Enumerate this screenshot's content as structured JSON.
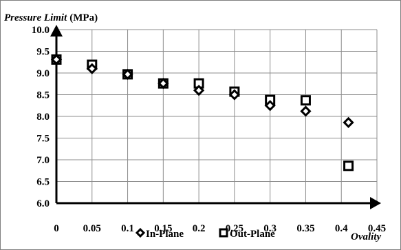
{
  "chart_data": {
    "type": "scatter",
    "title": "",
    "ylabel": {
      "italic": "Pressure Limit",
      "unit": "(MPa)"
    },
    "xlabel": "Ovality",
    "xlim": [
      0,
      0.45
    ],
    "ylim": [
      6.0,
      10.0
    ],
    "x_ticks": [
      "0",
      "0.05",
      "0.1",
      "0.15",
      "0.2",
      "0.25",
      "0.3",
      "0.35",
      "0.4",
      "0.45"
    ],
    "y_ticks": [
      "6.0",
      "6.5",
      "7.0",
      "7.5",
      "8.0",
      "8.5",
      "9.0",
      "9.5",
      "10.0"
    ],
    "grid": true,
    "legend_position": "bottom",
    "series": [
      {
        "name": "In-Plane",
        "marker": "diamond",
        "color": "#000000",
        "x": [
          0,
          0.05,
          0.1,
          0.15,
          0.2,
          0.25,
          0.3,
          0.35,
          0.41
        ],
        "y": [
          9.31,
          9.1,
          8.97,
          8.76,
          8.6,
          8.5,
          8.25,
          8.12,
          7.86
        ]
      },
      {
        "name": "Out-Plane",
        "marker": "square",
        "color": "#000000",
        "x": [
          0,
          0.05,
          0.1,
          0.15,
          0.2,
          0.25,
          0.3,
          0.35,
          0.41
        ],
        "y": [
          9.31,
          9.19,
          8.97,
          8.76,
          8.76,
          8.57,
          8.38,
          8.37,
          6.86
        ]
      }
    ]
  }
}
